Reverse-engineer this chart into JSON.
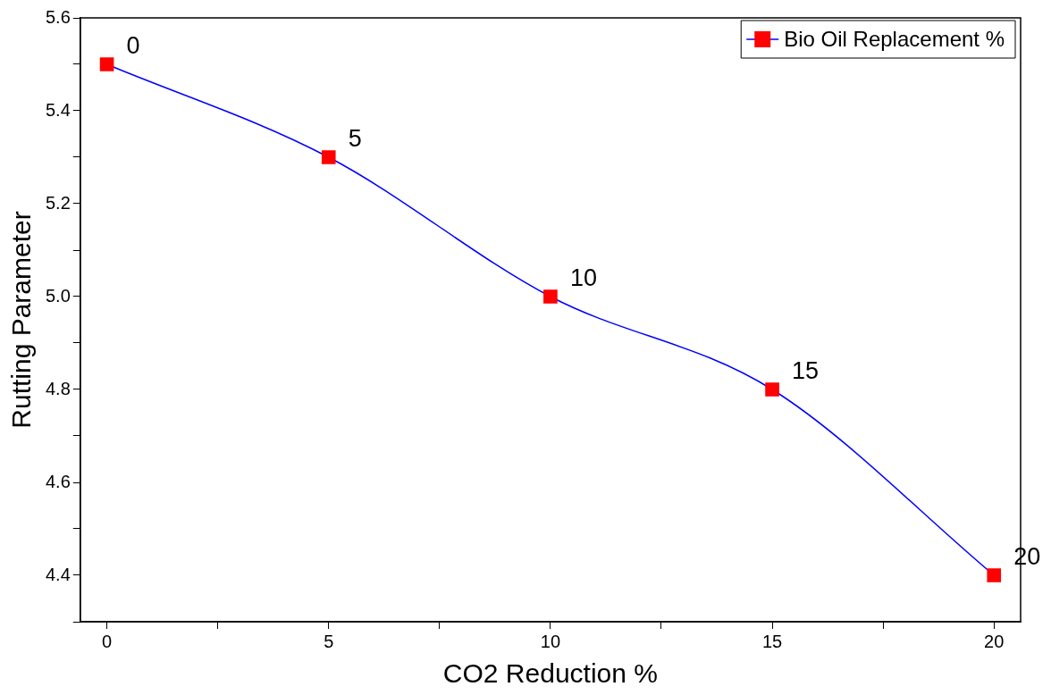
{
  "chart_data": {
    "type": "line",
    "xlabel": "CO2 Reduction %",
    "ylabel": "Rutting Parameter",
    "x": [
      0,
      5,
      10,
      15,
      20
    ],
    "series": [
      {
        "name": "Bio Oil Replacement %",
        "color": "#0000ff",
        "colors": [
          "#ff0000",
          "#ff0000",
          "#ff0000",
          "#ff0000",
          "#ff0000"
        ],
        "values": [
          5.5,
          5.3,
          5.0,
          4.8,
          4.4
        ]
      }
    ],
    "xlim": [
      -0.6,
      20.6
    ],
    "ylim": [
      4.3,
      5.6
    ],
    "xticks": [
      0,
      {
        "value": 2.5,
        "label": null
      },
      5,
      {
        "value": 7.5,
        "label": null
      },
      10,
      {
        "value": 12.5,
        "label": null
      },
      15,
      {
        "value": 17.5,
        "label": null
      },
      20
    ],
    "yticks": [
      {
        "value": 4.3,
        "label": null
      },
      4.4,
      {
        "value": 4.5,
        "label": null
      },
      4.6,
      {
        "value": 4.7,
        "label": null
      },
      4.8,
      {
        "value": 4.9,
        "label": null
      },
      {
        "value": 5,
        "label": "5.0"
      },
      {
        "value": 5.1,
        "label": null
      },
      5.2,
      {
        "value": 5.3,
        "label": null
      },
      5.4,
      {
        "value": 5.5,
        "label": null
      },
      5.6
    ],
    "annotations": [
      {
        "text": "0",
        "x": 0,
        "y": 5.5
      },
      {
        "text": "5",
        "x": 5,
        "y": 5.3
      },
      {
        "text": "10",
        "x": 10,
        "y": 5.0
      },
      {
        "text": "15",
        "x": 15,
        "y": 4.8
      },
      {
        "text": "20",
        "x": 20,
        "y": 4.4
      }
    ],
    "legend": "top right",
    "marker": "square",
    "line_style": "solid",
    "grid": false
  }
}
